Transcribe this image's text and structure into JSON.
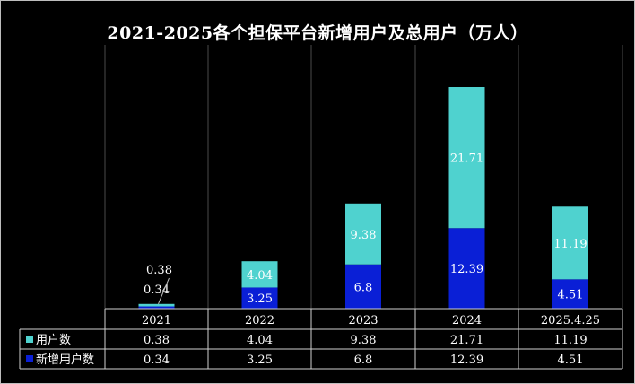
{
  "chart_data": {
    "type": "bar",
    "stacked": true,
    "title": "2021-2025各个担保平台新增用户及总用户（万人）",
    "categories": [
      "2021",
      "2022",
      "2023",
      "2024",
      "2025.4.25"
    ],
    "series": [
      {
        "name": "新增用户数",
        "values": [
          0.34,
          3.25,
          6.8,
          12.39,
          4.51
        ],
        "value_labels": [
          "0.34",
          "3.25",
          "6.8",
          "12.39",
          "4.51"
        ],
        "color": "#0a1fd6"
      },
      {
        "name": "用户数",
        "values": [
          0.38,
          4.04,
          9.38,
          21.71,
          11.19
        ],
        "value_labels": [
          "0.38",
          "4.04",
          "9.38",
          "21.71",
          "11.19"
        ],
        "color": "#4fd2cf"
      }
    ],
    "data_table": true,
    "legend": "in data table",
    "background": "#000000",
    "grid": "vertical category separators"
  }
}
